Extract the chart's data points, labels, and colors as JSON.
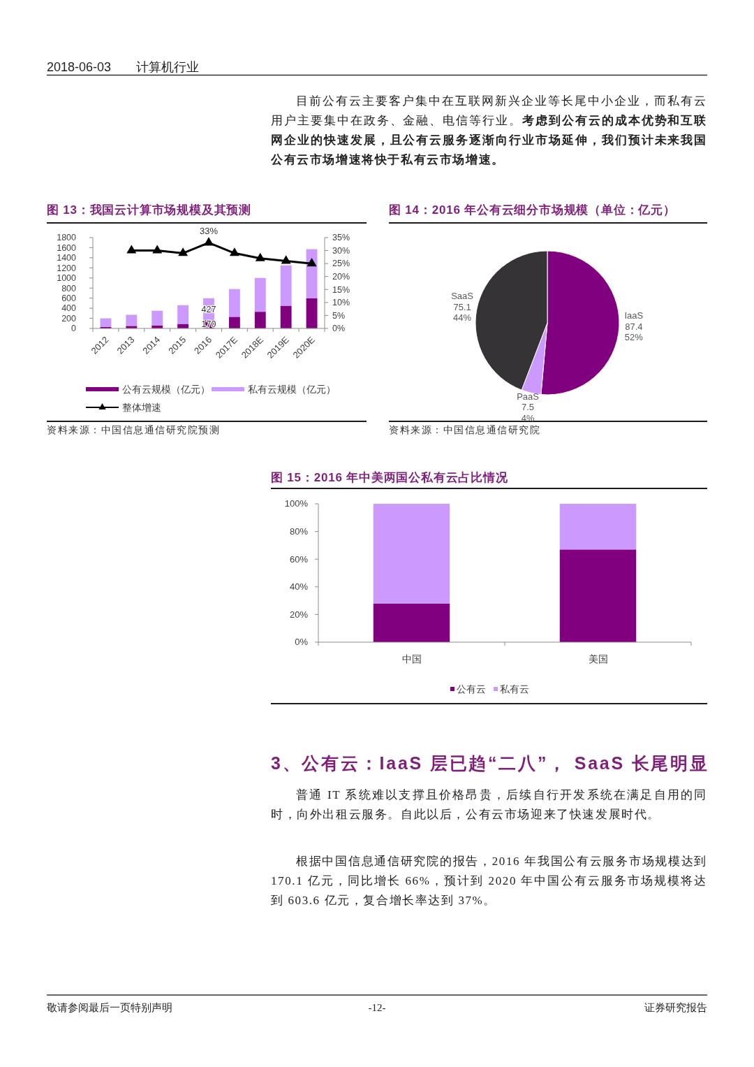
{
  "chart_data": [
    {
      "type": "bar",
      "title": "图 13：我国云计算市场规模及其预测",
      "categories": [
        "2012",
        "2013",
        "2014",
        "2015",
        "2016",
        "2017E",
        "2018E",
        "2019E",
        "2020E"
      ],
      "stacked": true,
      "series": [
        {
          "name": "公有云规模（亿元）",
          "color": "#800080",
          "values": [
            30,
            50,
            60,
            90,
            170,
            230,
            330,
            450,
            600
          ],
          "value_labels": [
            null,
            null,
            null,
            null,
            "170",
            null,
            null,
            null,
            null
          ]
        },
        {
          "name": "私有云规模（亿元）",
          "color": "#cc99ff",
          "values": [
            170,
            220,
            290,
            370,
            427,
            550,
            670,
            800,
            970
          ],
          "value_labels": [
            null,
            null,
            null,
            null,
            "427",
            null,
            null,
            null,
            null
          ]
        },
        {
          "name": "整体增速",
          "type": "line",
          "axis": "y2",
          "color": "#000000",
          "values": [
            null,
            30,
            30,
            29,
            33,
            29,
            27,
            26,
            25
          ],
          "value_labels": [
            null,
            null,
            null,
            null,
            "33%",
            null,
            null,
            null,
            null
          ]
        }
      ],
      "ylim": [
        0,
        1800
      ],
      "yticks": [
        0,
        200,
        400,
        600,
        800,
        1000,
        1200,
        1400,
        1600,
        1800
      ],
      "y2lim": [
        0,
        35
      ],
      "y2ticks": [
        {
          "value": 0,
          "label": "0%"
        },
        {
          "value": 5,
          "label": "5%"
        },
        {
          "value": 10,
          "label": "10%"
        },
        {
          "value": 15,
          "label": "15%"
        },
        {
          "value": 20,
          "label": "20%"
        },
        {
          "value": 25,
          "label": "25%"
        },
        {
          "value": 30,
          "label": "30%"
        },
        {
          "value": 35,
          "label": "35%"
        }
      ],
      "marker": "triangle",
      "legend": "bottom",
      "annotations": [
        "2018-06-03",
        "计算机行业",
        "目前公有云主要客户集中在互联网新兴企业等长尾中小企业，而私有云用户主要集中在政务、金融、电信等行业。",
        "考虑到公有云的成本优势和互联网企业的快速发展，且公有云服务逐渐向行业市场延伸，我们预计未来我国公有云市场增速将快于私有云市场增速。",
        "资料来源：中国信息通信研究院预测"
      ]
    },
    {
      "type": "pie",
      "title": "图 14：2016 年公有云细分市场规模（单位：亿元）",
      "categories": [
        "IaaS",
        "PaaS",
        "SaaS"
      ],
      "values": [
        87.4,
        7.5,
        75.1
      ],
      "colors": [
        "#800080",
        "#cc99ff",
        "#363336"
      ],
      "value_labels": [
        "87.4\n52%",
        "7.5\n4%",
        "75.1\n44%"
      ],
      "annotations": [
        "资料来源：中国信息通信研究院"
      ]
    },
    {
      "type": "bar",
      "title": "图 15：2016 年中美两国公私有云占比情况",
      "categories": [
        "中国",
        "美国"
      ],
      "stacked": true,
      "series": [
        {
          "name": "公有云",
          "color": "#800080",
          "values": [
            28,
            67
          ]
        },
        {
          "name": "私有云",
          "color": "#cc99ff",
          "values": [
            72,
            33
          ]
        }
      ],
      "ylim": [
        0,
        100
      ],
      "yticks": [
        {
          "value": 0,
          "label": "0%"
        },
        {
          "value": 20,
          "label": "20%"
        },
        {
          "value": 40,
          "label": "40%"
        },
        {
          "value": 60,
          "label": "60%"
        },
        {
          "value": 80,
          "label": "80%"
        },
        {
          "value": 100,
          "label": "100%"
        }
      ],
      "legend": "bottom",
      "annotations": [
        "3、公有云：IaaS 层已趋“二八”， SaaS 长尾明显",
        "普通 IT 系统难以支撑且价格昂贵，后续自行开发系统在满足自用的同时，向外出租云服务。自此以后，公有云市场迎来了快速发展时代。",
        "根据中国信息通信研究院的报告，2016 年我国公有云服务市场规模达到 170.1 亿元，同比增长 66%，预计到 2020 年中国公有云服务市场规模将达到 603.6 亿元，复合增长率达到 37%。",
        "敬请参阅最后一页特别声明",
        "-12-",
        "证券研究报告"
      ]
    }
  ]
}
